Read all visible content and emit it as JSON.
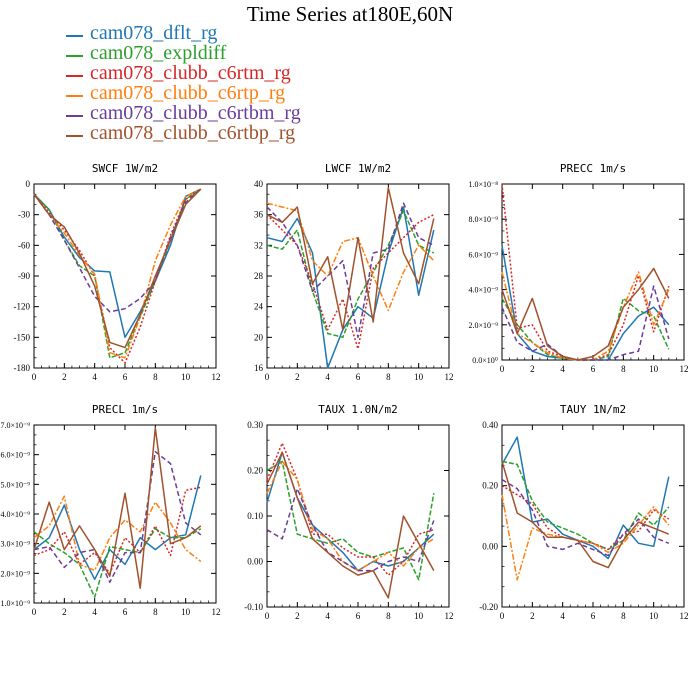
{
  "title": "Time Series at180E,60N",
  "legend": [
    {
      "name": "cam078_dflt_rg",
      "color": "#1f77b4"
    },
    {
      "name": "cam078_expldiff",
      "color": "#2ca02c"
    },
    {
      "name": "cam078_clubb_c6rtm_rg",
      "color": "#d62728"
    },
    {
      "name": "cam078_clubb_c6rtp_rg",
      "color": "#ff7f0e"
    },
    {
      "name": "cam078_clubb_c6rtbm_rg",
      "color": "#6a3d9a"
    },
    {
      "name": "cam078_clubb_c6rtbp_rg",
      "color": "#a0522d"
    }
  ],
  "chart_data": [
    {
      "type": "line",
      "title": "SWCF  1W/m2",
      "xlim": [
        0,
        12
      ],
      "ylim": [
        -180,
        0
      ],
      "xticks": [
        "0",
        "2",
        "4",
        "6",
        "8",
        "10",
        "12"
      ],
      "yticks": [
        "0",
        "-30",
        "-60",
        "-90",
        "-120",
        "-150",
        "-180"
      ],
      "x": [
        0,
        1,
        2,
        3,
        4,
        5,
        6,
        7,
        8,
        9,
        10,
        11
      ],
      "series": [
        {
          "name": "cam078_dflt_rg",
          "values": [
            -10,
            -25,
            -52,
            -72,
            -85,
            -86,
            -150,
            -125,
            -95,
            -60,
            -12,
            -5
          ]
        },
        {
          "name": "cam078_expldiff",
          "values": [
            -10,
            -25,
            -55,
            -80,
            -90,
            -170,
            -165,
            -130,
            -95,
            -55,
            -15,
            -5
          ]
        },
        {
          "name": "cam078_clubb_c6rtm_rg",
          "values": [
            -10,
            -28,
            -45,
            -65,
            -90,
            -160,
            -175,
            -140,
            -95,
            -50,
            -15,
            -5
          ]
        },
        {
          "name": "cam078_clubb_c6rtp_rg",
          "values": [
            -10,
            -30,
            -48,
            -70,
            -88,
            -165,
            -170,
            -130,
            -75,
            -40,
            -12,
            -5
          ]
        },
        {
          "name": "cam078_clubb_c6rtbm_rg",
          "values": [
            -10,
            -30,
            -55,
            -82,
            -110,
            -125,
            -122,
            -112,
            -95,
            -52,
            -18,
            -5
          ]
        },
        {
          "name": "cam078_clubb_c6rtbp_rg",
          "values": [
            -10,
            -30,
            -42,
            -68,
            -100,
            -155,
            -160,
            -128,
            -90,
            -55,
            -20,
            -5
          ]
        }
      ]
    },
    {
      "type": "line",
      "title": "LWCF  1W/m2",
      "xlim": [
        0,
        12
      ],
      "ylim": [
        16,
        40
      ],
      "xticks": [
        "0",
        "2",
        "4",
        "6",
        "8",
        "10",
        "12"
      ],
      "yticks": [
        "40",
        "36",
        "32",
        "28",
        "24",
        "20",
        "16"
      ],
      "x": [
        0,
        1,
        2,
        3,
        4,
        5,
        6,
        7,
        8,
        9,
        10,
        11
      ],
      "series": [
        {
          "name": "cam078_dflt_rg",
          "values": [
            33,
            32.5,
            35.5,
            31,
            16,
            21,
            24,
            22.5,
            31,
            37,
            25.5,
            34
          ]
        },
        {
          "name": "cam078_expldiff",
          "values": [
            32,
            31.5,
            34,
            26,
            20.5,
            20,
            25,
            28.5,
            32,
            36.5,
            32,
            31
          ]
        },
        {
          "name": "cam078_clubb_c6rtm_rg",
          "values": [
            36,
            34,
            32,
            27,
            21,
            25,
            18.5,
            29,
            31,
            33,
            35,
            36
          ]
        },
        {
          "name": "cam078_clubb_c6rtp_rg",
          "values": [
            37.5,
            37,
            36.5,
            30,
            28,
            32.5,
            33,
            28,
            23.5,
            28.5,
            32,
            30
          ]
        },
        {
          "name": "cam078_clubb_c6rtbm_rg",
          "values": [
            37,
            35,
            32,
            26,
            28,
            30,
            20,
            31,
            31.5,
            37.5,
            33,
            32
          ]
        },
        {
          "name": "cam078_clubb_c6rtbp_rg",
          "values": [
            36,
            35,
            37,
            27,
            30.5,
            21,
            33,
            22,
            39.5,
            31,
            27,
            35.5
          ]
        }
      ]
    },
    {
      "type": "line",
      "title": "PRECC  1m/s",
      "xlim": [
        0,
        12
      ],
      "ylim": [
        0,
        1e-08
      ],
      "xticks": [
        "0",
        "2",
        "4",
        "6",
        "8",
        "10",
        "12"
      ],
      "yticks": [
        "1.0×10⁻⁸",
        "8.0×10⁻⁹",
        "6.0×10⁻⁹",
        "4.0×10⁻⁹",
        "2.0×10⁻⁹",
        "0.0×10⁰"
      ],
      "x": [
        0,
        1,
        2,
        3,
        4,
        5,
        6,
        7,
        8,
        9,
        10,
        11
      ],
      "series": [
        {
          "name": "cam078_dflt_rg",
          "values": [
            6.5e-09,
            1.5e-09,
            5e-10,
            2e-10,
            1e-10,
            0,
            0,
            0,
            1.5e-09,
            2.5e-09,
            3e-09,
            2e-09
          ]
        },
        {
          "name": "cam078_expldiff",
          "values": [
            3.5e-09,
            2e-09,
            1e-09,
            3e-10,
            1e-10,
            0,
            0,
            2e-10,
            3.5e-09,
            2.8e-09,
            2.5e-09,
            6e-10
          ]
        },
        {
          "name": "cam078_clubb_c6rtm_rg",
          "values": [
            1e-08,
            1.8e-09,
            2e-09,
            5e-10,
            2e-10,
            0,
            0,
            3e-10,
            2e-09,
            4.8e-09,
            1.6e-09,
            4.2e-09
          ]
        },
        {
          "name": "cam078_clubb_c6rtp_rg",
          "values": [
            5e-09,
            1.5e-09,
            1e-09,
            4e-10,
            1e-10,
            0,
            0,
            5e-10,
            3e-09,
            5e-09,
            2e-09,
            4e-09
          ]
        },
        {
          "name": "cam078_clubb_c6rtbm_rg",
          "values": [
            3e-09,
            1e-09,
            5e-10,
            9e-10,
            2e-10,
            0,
            0,
            0,
            3e-10,
            5e-10,
            4.2e-09,
            1.2e-09
          ]
        },
        {
          "name": "cam078_clubb_c6rtbp_rg",
          "values": [
            4e-09,
            1.5e-09,
            3.5e-09,
            8e-10,
            2e-10,
            0,
            2e-10,
            8e-10,
            3e-09,
            4e-09,
            5.2e-09,
            3.5e-09
          ]
        }
      ]
    },
    {
      "type": "line",
      "title": "PRECL  1m/s",
      "xlim": [
        0,
        12
      ],
      "ylim": [
        1e-09,
        7e-09
      ],
      "xticks": [
        "0",
        "2",
        "4",
        "6",
        "8",
        "10",
        "12"
      ],
      "yticks": [
        "7.0×10⁻⁹",
        "6.0×10⁻⁹",
        "5.0×10⁻⁹",
        "4.0×10⁻⁹",
        "3.0×10⁻⁹",
        "2.0×10⁻⁹",
        "1.0×10⁻⁹"
      ],
      "x": [
        0,
        1,
        2,
        3,
        4,
        5,
        6,
        7,
        8,
        9,
        10,
        11
      ],
      "series": [
        {
          "name": "cam078_dflt_rg",
          "values": [
            2.8e-09,
            3.2e-09,
            4.3e-09,
            2.8e-09,
            1.8e-09,
            2.8e-09,
            2.3e-09,
            3.2e-09,
            2.8e-09,
            3.2e-09,
            3.3e-09,
            5.3e-09
          ]
        },
        {
          "name": "cam078_expldiff",
          "values": [
            3.4e-09,
            3e-09,
            2.7e-09,
            2.3e-09,
            1.2e-09,
            2.9e-09,
            2.8e-09,
            2.7e-09,
            3.5e-09,
            3.2e-09,
            3.2e-09,
            3.5e-09
          ]
        },
        {
          "name": "cam078_clubb_c6rtm_rg",
          "values": [
            2.6e-09,
            2.8e-09,
            3.4e-09,
            2.3e-09,
            2.7e-09,
            2e-09,
            3.2e-09,
            2.7e-09,
            3.6e-09,
            2.6e-09,
            4.8e-09,
            4.9e-09
          ]
        },
        {
          "name": "cam078_clubb_c6rtp_rg",
          "values": [
            3.2e-09,
            3.6e-09,
            4.6e-09,
            2.3e-09,
            2.1e-09,
            3.2e-09,
            3.8e-09,
            3.4e-09,
            4.4e-09,
            3.7e-09,
            2.8e-09,
            2.4e-09
          ]
        },
        {
          "name": "cam078_clubb_c6rtbm_rg",
          "values": [
            2.8e-09,
            2.9e-09,
            2.2e-09,
            2.7e-09,
            2.8e-09,
            1.7e-09,
            2.7e-09,
            2.7e-09,
            6.1e-09,
            5.7e-09,
            3.7e-09,
            3.3e-09
          ]
        },
        {
          "name": "cam078_clubb_c6rtbp_rg",
          "values": [
            2.8e-09,
            4.4e-09,
            2.8e-09,
            3.6e-09,
            2.8e-09,
            1.9e-09,
            4.7e-09,
            1.5e-09,
            6.9e-09,
            3e-09,
            3.2e-09,
            3.6e-09
          ]
        }
      ]
    },
    {
      "type": "line",
      "title": "TAUX  1.0N/m2",
      "xlim": [
        0,
        12
      ],
      "ylim": [
        -0.1,
        0.3
      ],
      "xticks": [
        "0",
        "2",
        "4",
        "6",
        "8",
        "10",
        "12"
      ],
      "yticks": [
        "0.30",
        "0.20",
        "0.10",
        "0.00",
        "-0.10"
      ],
      "x": [
        0,
        1,
        2,
        3,
        4,
        5,
        6,
        7,
        8,
        9,
        10,
        11
      ],
      "series": [
        {
          "name": "cam078_dflt_rg",
          "values": [
            0.13,
            0.24,
            0.14,
            0.08,
            0.05,
            0.02,
            -0.02,
            0,
            -0.01,
            0,
            0.03,
            0.06
          ]
        },
        {
          "name": "cam078_expldiff",
          "values": [
            0.2,
            0.22,
            0.06,
            0.05,
            0.04,
            0.05,
            0.02,
            0.01,
            0.02,
            0.03,
            -0.04,
            0.15
          ]
        },
        {
          "name": "cam078_clubb_c6rtm_rg",
          "values": [
            0.18,
            0.26,
            0.18,
            0.06,
            0.06,
            0.03,
            0.01,
            0.01,
            -0.03,
            0,
            0.06,
            0.07
          ]
        },
        {
          "name": "cam078_clubb_c6rtp_rg",
          "values": [
            0.15,
            0.22,
            0.18,
            0.07,
            0.05,
            0,
            -0.02,
            0,
            0.02,
            -0.01,
            0.03,
            0.05
          ]
        },
        {
          "name": "cam078_clubb_c6rtbm_rg",
          "values": [
            0.07,
            0.05,
            0.16,
            0.08,
            0.02,
            0,
            -0.02,
            -0.02,
            0,
            0.01,
            0,
            0.09
          ]
        },
        {
          "name": "cam078_clubb_c6rtbp_rg",
          "values": [
            0.17,
            0.24,
            0.14,
            0.05,
            0.02,
            -0.01,
            -0.03,
            -0.02,
            -0.08,
            0.1,
            0.04,
            -0.02
          ]
        }
      ]
    },
    {
      "type": "line",
      "title": "TAUY  1N/m2",
      "xlim": [
        0,
        12
      ],
      "ylim": [
        -0.2,
        0.4
      ],
      "xticks": [
        "0",
        "2",
        "4",
        "6",
        "8",
        "10",
        "12"
      ],
      "yticks": [
        "0.40",
        "0.20",
        "0.00",
        "-0.20"
      ],
      "x": [
        0,
        1,
        2,
        3,
        4,
        5,
        6,
        7,
        8,
        9,
        10,
        11
      ],
      "series": [
        {
          "name": "cam078_dflt_rg",
          "values": [
            0.27,
            0.36,
            0.08,
            0.09,
            0.04,
            0.02,
            0,
            -0.04,
            0.07,
            0.01,
            0,
            0.23
          ]
        },
        {
          "name": "cam078_expldiff",
          "values": [
            0.28,
            0.27,
            0.15,
            0.08,
            0.06,
            0.04,
            0.01,
            -0.01,
            0.02,
            0.11,
            0.07,
            0.13
          ]
        },
        {
          "name": "cam078_clubb_c6rtm_rg",
          "values": [
            0.2,
            0.17,
            0.14,
            0.06,
            0.03,
            0.02,
            0.01,
            -0.01,
            0.04,
            0.05,
            0.12,
            0.09
          ]
        },
        {
          "name": "cam078_clubb_c6rtp_rg",
          "values": [
            0.17,
            -0.11,
            0.06,
            0.04,
            0.03,
            0.02,
            0.01,
            -0.02,
            0.01,
            0.07,
            0.13,
            0.07
          ]
        },
        {
          "name": "cam078_clubb_c6rtbm_rg",
          "values": [
            0.22,
            0.19,
            0.12,
            0,
            -0.01,
            0.01,
            -0.01,
            -0.03,
            0.04,
            0.09,
            0.03,
            0.01
          ]
        },
        {
          "name": "cam078_clubb_c6rtbp_rg",
          "values": [
            0.28,
            0.11,
            0.08,
            0.03,
            0.03,
            0.02,
            -0.05,
            -0.07,
            0.02,
            0.08,
            0.06,
            0.04
          ]
        }
      ]
    }
  ]
}
